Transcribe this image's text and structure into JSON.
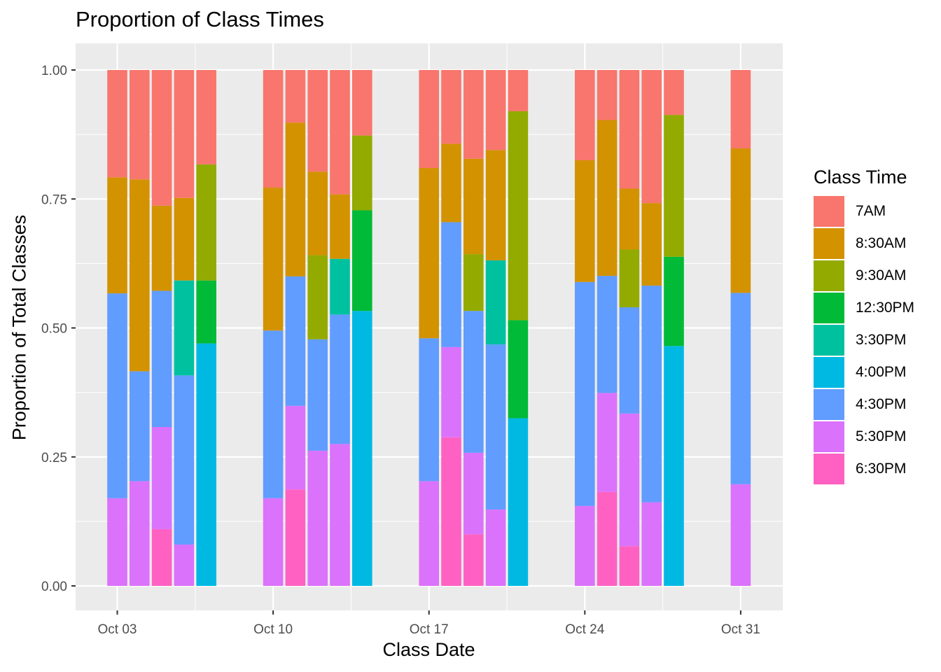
{
  "chart_data": {
    "type": "bar",
    "stacked": "fill",
    "title": "Proportion of Class Times",
    "xlabel": "Class Date",
    "ylabel": "Proportion of Total Classes",
    "legend_title": "Class Time",
    "legend_position": "right",
    "ylim": [
      0,
      1
    ],
    "y_ticks": [
      "0.00",
      "0.25",
      "0.50",
      "0.75",
      "1.00"
    ],
    "x_ticks": [
      "Oct 03",
      "Oct 10",
      "Oct 17",
      "Oct 24",
      "Oct 31"
    ],
    "grid": true,
    "series": [
      {
        "name": "7AM",
        "color": "#F8766D"
      },
      {
        "name": "8:30AM",
        "color": "#D39200"
      },
      {
        "name": "9:30AM",
        "color": "#93AA00"
      },
      {
        "name": "12:30PM",
        "color": "#00BA38"
      },
      {
        "name": "3:30PM",
        "color": "#00C19F"
      },
      {
        "name": "4:00PM",
        "color": "#00B9E3"
      },
      {
        "name": "4:30PM",
        "color": "#619CFF"
      },
      {
        "name": "5:30PM",
        "color": "#DB72FB"
      },
      {
        "name": "6:30PM",
        "color": "#FF61C3"
      }
    ],
    "bars": [
      {
        "x": "2022-10-03",
        "values": {
          "6:30PM": 0,
          "5:30PM": 0.17,
          "4:30PM": 0.397,
          "8:30AM": 0.225,
          "7AM": 0.208
        }
      },
      {
        "x": "2022-10-04",
        "values": {
          "6:30PM": 0,
          "5:30PM": 0.203,
          "4:30PM": 0.213,
          "8:30AM": 0.372,
          "7AM": 0.212
        }
      },
      {
        "x": "2022-10-05",
        "values": {
          "6:30PM": 0.11,
          "5:30PM": 0.198,
          "4:30PM": 0.264,
          "8:30AM": 0.165,
          "7AM": 0.263
        }
      },
      {
        "x": "2022-10-06",
        "values": {
          "5:30PM": 0.08,
          "4:30PM": 0.328,
          "3:30PM": 0.184,
          "8:30AM": 0.16,
          "7AM": 0.248
        }
      },
      {
        "x": "2022-10-07",
        "values": {
          "4:00PM": 0.47,
          "12:30PM": 0.122,
          "9:30AM": 0.225,
          "7AM": 0.183
        }
      },
      {
        "x": "2022-10-10",
        "values": {
          "6:30PM": 0,
          "5:30PM": 0.17,
          "4:30PM": 0.325,
          "8:30AM": 0.277,
          "7AM": 0.228
        }
      },
      {
        "x": "2022-10-11",
        "values": {
          "6:30PM": 0.187,
          "5:30PM": 0.162,
          "4:30PM": 0.251,
          "8:30AM": 0.298,
          "7AM": 0.102
        }
      },
      {
        "x": "2022-10-12",
        "values": {
          "6:30PM": 0,
          "5:30PM": 0.262,
          "4:30PM": 0.216,
          "9:30AM": 0.163,
          "8:30AM": 0.162,
          "7AM": 0.197
        }
      },
      {
        "x": "2022-10-13",
        "values": {
          "6:30PM": 0,
          "5:30PM": 0.275,
          "4:30PM": 0.251,
          "3:30PM": 0.108,
          "8:30AM": 0.125,
          "7AM": 0.241
        }
      },
      {
        "x": "2022-10-14",
        "values": {
          "4:00PM": 0.533,
          "12:30PM": 0.195,
          "9:30AM": 0.145,
          "7AM": 0.127
        }
      },
      {
        "x": "2022-10-17",
        "values": {
          "6:30PM": 0,
          "5:30PM": 0.203,
          "4:30PM": 0.277,
          "8:30AM": 0.33,
          "7AM": 0.19
        }
      },
      {
        "x": "2022-10-18",
        "values": {
          "6:30PM": 0.288,
          "5:30PM": 0.175,
          "4:30PM": 0.242,
          "8:30AM": 0.152,
          "7AM": 0.143
        }
      },
      {
        "x": "2022-10-19",
        "values": {
          "6:30PM": 0.1,
          "5:30PM": 0.158,
          "4:30PM": 0.275,
          "9:30AM": 0.11,
          "8:30AM": 0.185,
          "7AM": 0.172
        }
      },
      {
        "x": "2022-10-20",
        "values": {
          "6:30PM": 0,
          "5:30PM": 0.148,
          "4:30PM": 0.32,
          "3:30PM": 0.163,
          "8:30AM": 0.214,
          "7AM": 0.155
        }
      },
      {
        "x": "2022-10-21",
        "values": {
          "4:00PM": 0.325,
          "12:30PM": 0.19,
          "9:30AM": 0.405,
          "7AM": 0.08
        }
      },
      {
        "x": "2022-10-24",
        "values": {
          "6:30PM": 0,
          "5:30PM": 0.155,
          "4:30PM": 0.434,
          "8:30AM": 0.236,
          "7AM": 0.175
        }
      },
      {
        "x": "2022-10-25",
        "values": {
          "6:30PM": 0.182,
          "5:30PM": 0.192,
          "4:30PM": 0.227,
          "8:30AM": 0.302,
          "7AM": 0.097
        }
      },
      {
        "x": "2022-10-26",
        "values": {
          "6:30PM": 0.077,
          "5:30PM": 0.257,
          "4:30PM": 0.206,
          "9:30AM": 0.112,
          "8:30AM": 0.118,
          "7AM": 0.23
        }
      },
      {
        "x": "2022-10-27",
        "values": {
          "6:30PM": 0,
          "5:30PM": 0.162,
          "4:30PM": 0.42,
          "8:30AM": 0.16,
          "7AM": 0.258
        }
      },
      {
        "x": "2022-10-28",
        "values": {
          "4:00PM": 0.465,
          "12:30PM": 0.173,
          "9:30AM": 0.275,
          "7AM": 0.087
        }
      },
      {
        "x": "2022-10-31",
        "values": {
          "6:30PM": 0,
          "5:30PM": 0.197,
          "4:30PM": 0.371,
          "8:30AM": 0.28,
          "7AM": 0.152
        }
      }
    ]
  }
}
